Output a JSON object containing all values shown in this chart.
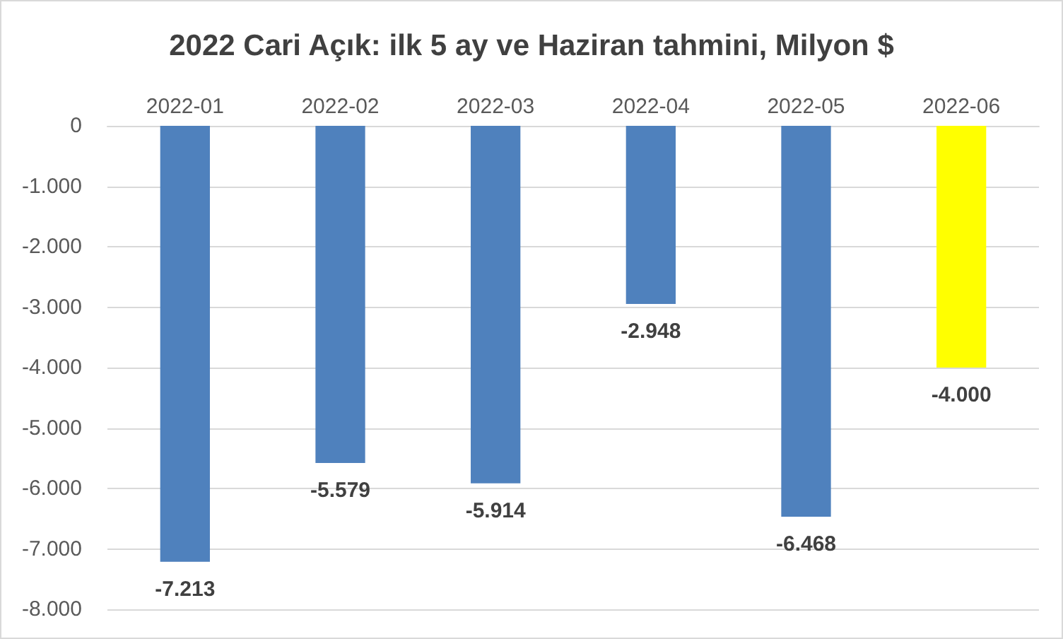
{
  "chart_data": {
    "type": "bar",
    "title": "2022 Cari Açık: ilk 5 ay ve Haziran tahmini, Milyon $",
    "categories": [
      "2022-01",
      "2022-02",
      "2022-03",
      "2022-04",
      "2022-05",
      "2022-06"
    ],
    "values": [
      -7213,
      -5579,
      -5914,
      -2948,
      -6468,
      -4000
    ],
    "colors": [
      "#4f81bd",
      "#4f81bd",
      "#4f81bd",
      "#4f81bd",
      "#4f81bd",
      "#ffff00"
    ],
    "value_labels": [
      "-7.213",
      "-5.579",
      "-5.914",
      "-2.948",
      "-6.468",
      "-4.000"
    ],
    "ylim": [
      -8000,
      0
    ],
    "yticks": [
      {
        "value": 0,
        "label": "0"
      },
      {
        "value": -1000,
        "label": "-1.000"
      },
      {
        "value": -2000,
        "label": "-2.000"
      },
      {
        "value": -3000,
        "label": "-3.000"
      },
      {
        "value": -4000,
        "label": "-4.000"
      },
      {
        "value": -5000,
        "label": "-5.000"
      },
      {
        "value": -6000,
        "label": "-6.000"
      },
      {
        "value": -7000,
        "label": "-7.000"
      },
      {
        "value": -8000,
        "label": "-8.000"
      }
    ],
    "grid": "y"
  }
}
